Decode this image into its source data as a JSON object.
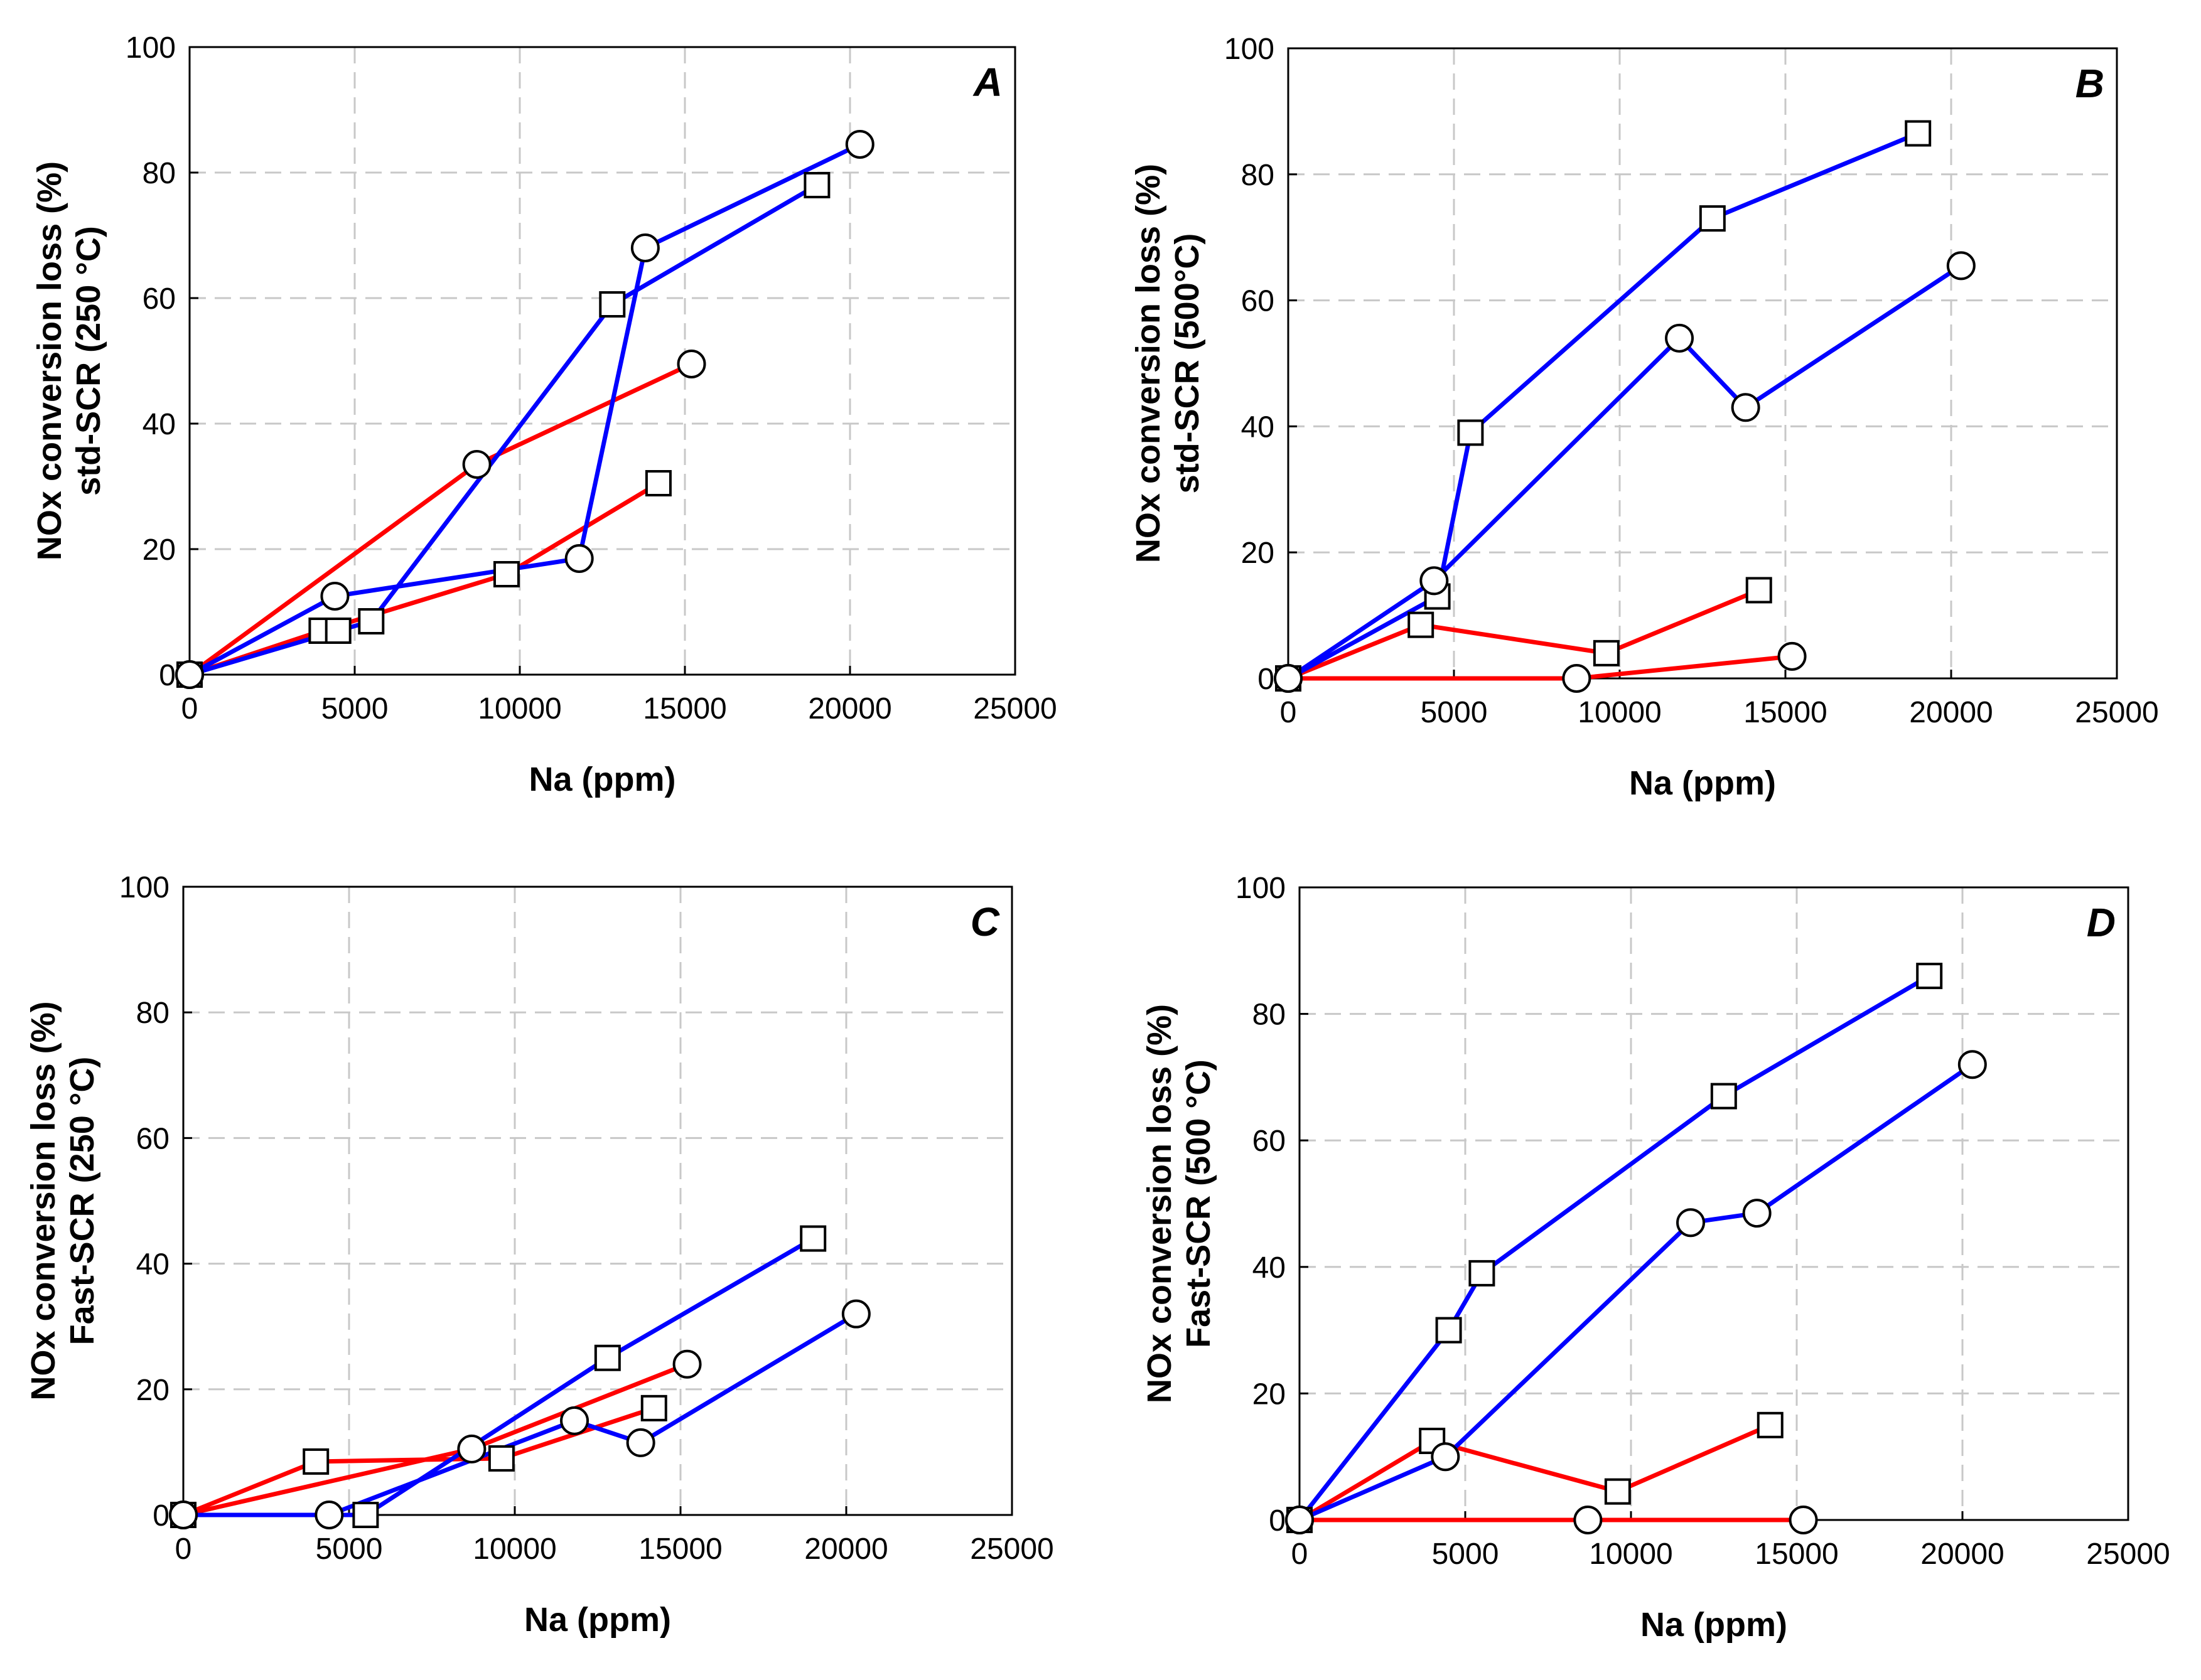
{
  "chart_data": [
    {
      "panel": "A",
      "type": "line",
      "xlabel": "Na (ppm)",
      "ylabel": [
        "NOx conversion loss (%)",
        "std-SCR (250 °C)"
      ],
      "xlim": [
        0,
        25000
      ],
      "ylim": [
        0,
        100
      ],
      "xticks": [
        "0",
        "5000",
        "10000",
        "15000",
        "20000",
        "25000"
      ],
      "yticks": [
        "0",
        "20",
        "40",
        "60",
        "80",
        "100"
      ],
      "grid": true,
      "series": [
        {
          "color": "#ff0000",
          "marker": "square",
          "x": [
            0,
            4000,
            9600,
            14200
          ],
          "y": [
            0,
            7,
            16,
            30.5
          ]
        },
        {
          "color": "#ff0000",
          "marker": "circle",
          "x": [
            0,
            8700,
            15200
          ],
          "y": [
            0,
            33.5,
            49.5
          ]
        },
        {
          "color": "#0000ff",
          "marker": "square",
          "x": [
            0,
            4500,
            5500,
            12800,
            19000
          ],
          "y": [
            0,
            7,
            8.5,
            59,
            78
          ]
        },
        {
          "color": "#0000ff",
          "marker": "circle",
          "x": [
            0,
            4400,
            11800,
            13800,
            20300
          ],
          "y": [
            0,
            12.5,
            18.5,
            68,
            84.5
          ]
        }
      ]
    },
    {
      "panel": "B",
      "type": "line",
      "xlabel": "Na (ppm)",
      "ylabel": [
        "NOx conversion loss (%)",
        "std-SCR (500°C)"
      ],
      "xlim": [
        0,
        25000
      ],
      "ylim": [
        0,
        100
      ],
      "xticks": [
        "0",
        "5000",
        "10000",
        "15000",
        "20000",
        "25000"
      ],
      "yticks": [
        "0",
        "20",
        "40",
        "60",
        "80",
        "100"
      ],
      "grid": true,
      "series": [
        {
          "color": "#ff0000",
          "marker": "square",
          "x": [
            0,
            4000,
            9600,
            14200
          ],
          "y": [
            0,
            8.5,
            4,
            14
          ]
        },
        {
          "color": "#ff0000",
          "marker": "circle",
          "x": [
            0,
            8700,
            15200
          ],
          "y": [
            0,
            0,
            3.5
          ]
        },
        {
          "color": "#0000ff",
          "marker": "square",
          "x": [
            0,
            4500,
            5500,
            12800,
            19000
          ],
          "y": [
            0,
            13,
            39,
            73,
            86.5
          ]
        },
        {
          "color": "#0000ff",
          "marker": "circle",
          "x": [
            0,
            4400,
            11800,
            13800,
            20300
          ],
          "y": [
            0,
            15.5,
            54,
            43,
            65.5
          ]
        }
      ]
    },
    {
      "panel": "C",
      "type": "line",
      "xlabel": "Na (ppm)",
      "ylabel": [
        "NOx conversion loss (%)",
        "Fast-SCR (250 °C)"
      ],
      "xlim": [
        0,
        25000
      ],
      "ylim": [
        0,
        100
      ],
      "xticks": [
        "0",
        "5000",
        "10000",
        "15000",
        "20000",
        "25000"
      ],
      "yticks": [
        "0",
        "20",
        "40",
        "60",
        "80",
        "100"
      ],
      "grid": true,
      "series": [
        {
          "color": "#ff0000",
          "marker": "square",
          "x": [
            0,
            4000,
            9600,
            14200
          ],
          "y": [
            0,
            8.5,
            9,
            17
          ]
        },
        {
          "color": "#ff0000",
          "marker": "circle",
          "x": [
            0,
            8700,
            15200
          ],
          "y": [
            0,
            10.5,
            24
          ]
        },
        {
          "color": "#0000ff",
          "marker": "square",
          "x": [
            0,
            5500,
            12800,
            19000
          ],
          "y": [
            0,
            0,
            25,
            44
          ]
        },
        {
          "color": "#0000ff",
          "marker": "circle",
          "x": [
            0,
            4400,
            11800,
            13800,
            20300
          ],
          "y": [
            0,
            0,
            15,
            11.5,
            32
          ]
        }
      ]
    },
    {
      "panel": "D",
      "type": "line",
      "xlabel": "Na (ppm)",
      "ylabel": [
        "NOx conversion loss (%)",
        "Fast-SCR (500 °C)"
      ],
      "xlim": [
        0,
        25000
      ],
      "ylim": [
        0,
        100
      ],
      "xticks": [
        "0",
        "5000",
        "10000",
        "15000",
        "20000",
        "25000"
      ],
      "yticks": [
        "0",
        "20",
        "40",
        "60",
        "80",
        "100"
      ],
      "grid": true,
      "series": [
        {
          "color": "#ff0000",
          "marker": "square",
          "x": [
            0,
            4000,
            9600,
            14200
          ],
          "y": [
            0,
            12.5,
            4.5,
            15
          ]
        },
        {
          "color": "#ff0000",
          "marker": "circle",
          "x": [
            0,
            8700,
            15200
          ],
          "y": [
            0,
            0,
            0
          ]
        },
        {
          "color": "#0000ff",
          "marker": "square",
          "x": [
            0,
            4500,
            5500,
            12800,
            19000
          ],
          "y": [
            0,
            30,
            39,
            67,
            86
          ]
        },
        {
          "color": "#0000ff",
          "marker": "circle",
          "x": [
            0,
            4400,
            11800,
            13800,
            20300
          ],
          "y": [
            0,
            10,
            47,
            48.5,
            72
          ]
        }
      ]
    }
  ]
}
